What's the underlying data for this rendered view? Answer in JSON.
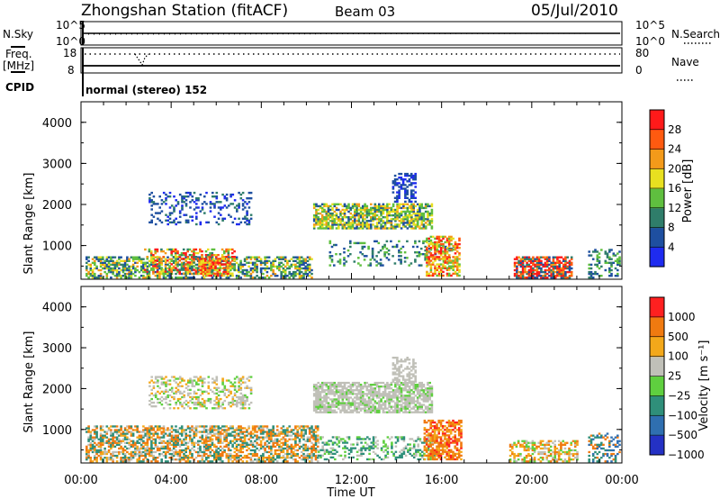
{
  "header": {
    "station": "Zhongshan Station (fitACF)",
    "beam": "Beam 03",
    "date": "05/Jul/2010"
  },
  "top_strip": {
    "nsky_label": "N.Sky",
    "nsky_ticks": [
      "10^5",
      "10^0"
    ],
    "nsearch_label": "N.Search",
    "nsearch_ticks": [
      "10^5",
      "10^0"
    ],
    "freq_label_line1": "Freq.",
    "freq_label_line2": "[MHz]",
    "freq_ticks": [
      "18",
      "8"
    ],
    "nave_label": "Nave",
    "nave_ticks": [
      "80",
      "0"
    ],
    "cpid_label": "CPID",
    "mode_text": "normal (stereo) 152"
  },
  "chart_data": [
    {
      "type": "heatmap",
      "name": "power",
      "ylabel": "Slant Range [km]",
      "xlabel": "Time UT",
      "xlim": [
        0,
        24
      ],
      "ylim": [
        180,
        4500
      ],
      "yticks": [
        "1000",
        "2000",
        "3000",
        "4000"
      ],
      "xticks": [
        "00:00",
        "04:00",
        "08:00",
        "12:00",
        "16:00",
        "20:00",
        "00:00"
      ],
      "colorbar_label": "Power [dB]",
      "colorbar_ticks": [
        "28",
        "24",
        "20",
        "16",
        "12",
        "8",
        "4"
      ],
      "colors": [
        "#1e2bf0",
        "#1e4fa0",
        "#2f7d6a",
        "#5fbf3f",
        "#e8e020",
        "#f39a1a",
        "#ff5a10",
        "#ff1a1a"
      ]
    },
    {
      "type": "heatmap",
      "name": "velocity",
      "ylabel": "Slant Range [km]",
      "xlabel": "Time UT",
      "xlim": [
        0,
        24
      ],
      "ylim": [
        180,
        4500
      ],
      "yticks": [
        "1000",
        "2000",
        "3000",
        "4000"
      ],
      "xticks": [
        "00:00",
        "04:00",
        "08:00",
        "12:00",
        "16:00",
        "20:00",
        "00:00"
      ],
      "colorbar_label": "Velocity [m s⁻¹]",
      "colorbar_ticks": [
        "1000",
        "500",
        "100",
        "25",
        "−25",
        "−100",
        "−500",
        "−1000"
      ],
      "colors": [
        "#2431c4",
        "#2f6fb0",
        "#2f8f7a",
        "#5fcf3f",
        "#c0c0b8",
        "#f3a81a",
        "#f07a10",
        "#ff2020"
      ]
    }
  ]
}
